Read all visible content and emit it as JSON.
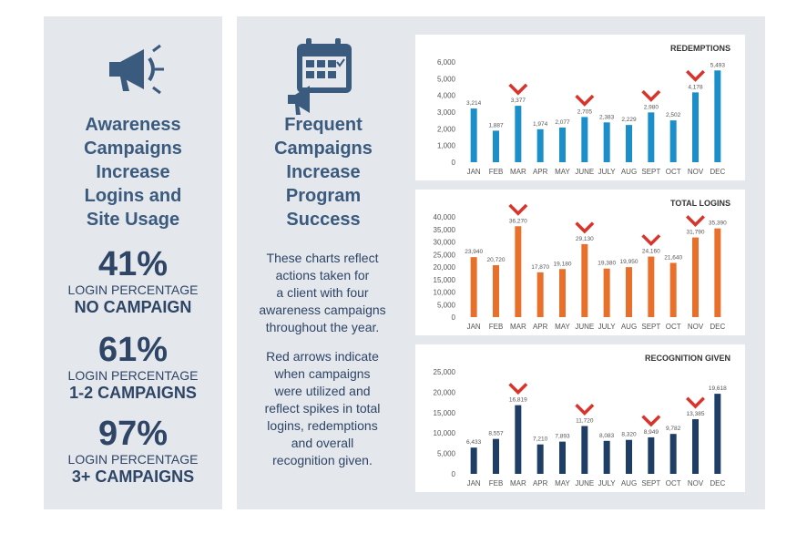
{
  "left": {
    "title": [
      "Awareness",
      "Campaigns",
      "Increase",
      "Logins and",
      "Site Usage"
    ],
    "stats": [
      {
        "pct": "41%",
        "label1": "LOGIN PERCENTAGE",
        "label2": "NO CAMPAIGN"
      },
      {
        "pct": "61%",
        "label1": "LOGIN PERCENTAGE",
        "label2": "1-2 CAMPAIGNS"
      },
      {
        "pct": "97%",
        "label1": "LOGIN PERCENTAGE",
        "label2": "3+ CAMPAIGNS"
      }
    ]
  },
  "middle": {
    "title": [
      "Frequent",
      "Campaigns",
      "Increase",
      "Program",
      "Success"
    ],
    "para1": [
      "These charts reflect",
      "actions taken for",
      "a client with four",
      "awareness campaigns",
      "throughout the year."
    ],
    "para2": [
      "Red arrows indicate",
      "when campaigns",
      "were utilized and",
      "reflect spikes in total",
      "logins, redemptions",
      "and overall",
      "recognition given."
    ]
  },
  "colors": {
    "redemptions": "#1b8fc9",
    "logins": "#e8702a",
    "recognition": "#1e3e66",
    "marker": "#d9342b",
    "text_dark": "#2e4566",
    "title_blue": "#3a5a7e"
  },
  "chart_data": [
    {
      "type": "bar",
      "title": "REDEMPTIONS",
      "categories": [
        "JAN",
        "FEB",
        "MAR",
        "APR",
        "MAY",
        "JUNE",
        "JULY",
        "AUG",
        "SEPT",
        "OCT",
        "NOV",
        "DEC"
      ],
      "values": [
        3214,
        1887,
        3377,
        1974,
        2077,
        2705,
        2383,
        2229,
        2980,
        2502,
        4178,
        5493
      ],
      "value_labels": [
        "3,214",
        "1,887",
        "3,377",
        "1,974",
        "2,077",
        "2,705",
        "2,383",
        "2,229",
        "2,980",
        "2,502",
        "4,178",
        "5,493"
      ],
      "yticks": [
        "0",
        "1,000",
        "2,000",
        "3,000",
        "4,000",
        "5,000",
        "6,000"
      ],
      "ylim": [
        0,
        6000
      ],
      "campaign_markers": [
        "MAR",
        "JUNE",
        "SEPT",
        "NOV"
      ]
    },
    {
      "type": "bar",
      "title": "TOTAL LOGINS",
      "categories": [
        "JAN",
        "FEB",
        "MAR",
        "APR",
        "MAY",
        "JUNE",
        "JULY",
        "AUG",
        "SEPT",
        "OCT",
        "NOV",
        "DEC"
      ],
      "values": [
        23940,
        20720,
        36270,
        17870,
        19180,
        29130,
        19380,
        19950,
        24160,
        21640,
        31790,
        35390
      ],
      "value_labels": [
        "23,940",
        "20,720",
        "36,270",
        "17,870",
        "19,180",
        "29,130",
        "19,380",
        "19,950",
        "24,160",
        "21,640",
        "31,790",
        "35,390"
      ],
      "yticks": [
        "0",
        "5,000",
        "10,000",
        "15,000",
        "20,000",
        "25,000",
        "30,000",
        "35,000",
        "40,000"
      ],
      "ylim": [
        0,
        40000
      ],
      "campaign_markers": [
        "MAR",
        "JUNE",
        "SEPT",
        "NOV"
      ]
    },
    {
      "type": "bar",
      "title": "RECOGNITION GIVEN",
      "categories": [
        "JAN",
        "FEB",
        "MAR",
        "APR",
        "MAY",
        "JUNE",
        "JULY",
        "AUG",
        "SEPT",
        "OCT",
        "NOV",
        "DEC"
      ],
      "values": [
        6433,
        8557,
        16819,
        7210,
        7893,
        11720,
        8083,
        8320,
        8949,
        9782,
        13385,
        19618
      ],
      "value_labels": [
        "6,433",
        "8,557",
        "16,819",
        "7,210",
        "7,893",
        "11,720",
        "8,083",
        "8,320",
        "8,949",
        "9,782",
        "13,385",
        "19,618"
      ],
      "yticks": [
        "0",
        "5,000",
        "10,000",
        "15,000",
        "20,000",
        "25,000"
      ],
      "ylim": [
        0,
        25000
      ],
      "campaign_markers": [
        "MAR",
        "JUNE",
        "SEPT",
        "NOV"
      ]
    }
  ]
}
